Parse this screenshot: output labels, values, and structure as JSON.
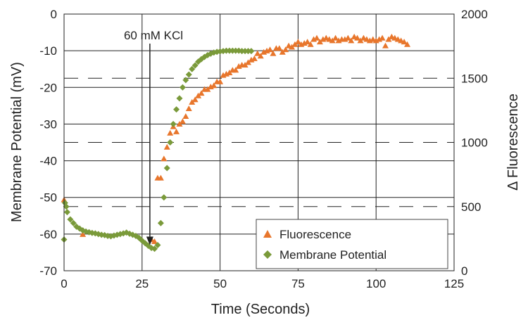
{
  "chart_data": {
    "type": "scatter",
    "title": "",
    "xlabel": "Time (Seconds)",
    "ylabel_left": "Membrane Potential (mV)",
    "ylabel_right": "Δ Fluorescence",
    "xlim": [
      0,
      125
    ],
    "ylim_left": [
      -70,
      0
    ],
    "ylim_right": [
      0,
      2000
    ],
    "x_ticks": [
      "0",
      "25",
      "50",
      "75",
      "100",
      "125"
    ],
    "y_left_ticks": [
      "0",
      "-10",
      "-20",
      "-30",
      "-40",
      "-50",
      "-60",
      "-70"
    ],
    "y_right_ticks": [
      "2000",
      "1500",
      "1000",
      "500",
      "0"
    ],
    "grid": "solid gridlines on left axis ticks; dashed lines at right axis ticks 500, 1000, 1500",
    "legend_position": "bottom-right",
    "annotation": {
      "text": "60 mM KCl",
      "x": 27.5,
      "y_left": -63
    },
    "series": [
      {
        "name": "Fluorescence",
        "axis": "right",
        "marker": "triangle",
        "color": "#E8762C",
        "points": [
          [
            0,
            550
          ],
          [
            6,
            280
          ],
          [
            28,
            240
          ],
          [
            29,
            225
          ],
          [
            30,
            720
          ],
          [
            31,
            720
          ],
          [
            32,
            870
          ],
          [
            33,
            960
          ],
          [
            34,
            1070
          ],
          [
            35,
            1120
          ],
          [
            36,
            1080
          ],
          [
            37,
            1140
          ],
          [
            38,
            1160
          ],
          [
            39,
            1200
          ],
          [
            40,
            1260
          ],
          [
            41,
            1310
          ],
          [
            42,
            1330
          ],
          [
            43,
            1360
          ],
          [
            44,
            1380
          ],
          [
            45,
            1410
          ],
          [
            46,
            1410
          ],
          [
            47,
            1430
          ],
          [
            48,
            1440
          ],
          [
            49,
            1470
          ],
          [
            50,
            1470
          ],
          [
            51,
            1520
          ],
          [
            52,
            1530
          ],
          [
            53,
            1540
          ],
          [
            54,
            1560
          ],
          [
            55,
            1560
          ],
          [
            56,
            1590
          ],
          [
            57,
            1600
          ],
          [
            58,
            1600
          ],
          [
            59,
            1620
          ],
          [
            60,
            1640
          ],
          [
            61,
            1650
          ],
          [
            62,
            1690
          ],
          [
            63,
            1670
          ],
          [
            64,
            1700
          ],
          [
            65,
            1710
          ],
          [
            66,
            1720
          ],
          [
            67,
            1690
          ],
          [
            68,
            1730
          ],
          [
            69,
            1730
          ],
          [
            70,
            1700
          ],
          [
            71,
            1720
          ],
          [
            72,
            1750
          ],
          [
            73,
            1740
          ],
          [
            74,
            1760
          ],
          [
            75,
            1780
          ],
          [
            76,
            1760
          ],
          [
            77,
            1770
          ],
          [
            78,
            1780
          ],
          [
            79,
            1760
          ],
          [
            80,
            1800
          ],
          [
            81,
            1810
          ],
          [
            82,
            1780
          ],
          [
            83,
            1800
          ],
          [
            84,
            1810
          ],
          [
            85,
            1800
          ],
          [
            86,
            1790
          ],
          [
            87,
            1810
          ],
          [
            88,
            1790
          ],
          [
            89,
            1800
          ],
          [
            90,
            1800
          ],
          [
            91,
            1810
          ],
          [
            92,
            1790
          ],
          [
            93,
            1820
          ],
          [
            94,
            1810
          ],
          [
            95,
            1790
          ],
          [
            96,
            1810
          ],
          [
            97,
            1800
          ],
          [
            98,
            1790
          ],
          [
            99,
            1800
          ],
          [
            100,
            1790
          ],
          [
            101,
            1800
          ],
          [
            102,
            1810
          ],
          [
            103,
            1750
          ],
          [
            104,
            1800
          ],
          [
            105,
            1820
          ],
          [
            106,
            1810
          ],
          [
            107,
            1800
          ],
          [
            108,
            1790
          ],
          [
            109,
            1780
          ],
          [
            110,
            1760
          ]
        ]
      },
      {
        "name": "Membrane Potential",
        "axis": "left",
        "marker": "diamond",
        "color": "#7A9A3A",
        "points": [
          [
            0,
            -61.5
          ],
          [
            0.3,
            -51.5
          ],
          [
            0.7,
            -52.5
          ],
          [
            1,
            -54
          ],
          [
            2,
            -56
          ],
          [
            3,
            -57
          ],
          [
            4,
            -58
          ],
          [
            5,
            -58.5
          ],
          [
            6,
            -59
          ],
          [
            7,
            -59.3
          ],
          [
            8,
            -59.5
          ],
          [
            9,
            -59.7
          ],
          [
            10,
            -59.8
          ],
          [
            11,
            -60
          ],
          [
            12,
            -60.2
          ],
          [
            13,
            -60.3
          ],
          [
            14,
            -60.5
          ],
          [
            15,
            -60.6
          ],
          [
            16,
            -60.4
          ],
          [
            17,
            -60.2
          ],
          [
            18,
            -60
          ],
          [
            19,
            -59.8
          ],
          [
            20,
            -59.6
          ],
          [
            21,
            -59.9
          ],
          [
            22,
            -60.2
          ],
          [
            23,
            -60.5
          ],
          [
            24,
            -61
          ],
          [
            25,
            -61.8
          ],
          [
            26,
            -62.5
          ],
          [
            27,
            -63.2
          ],
          [
            28,
            -63.8
          ],
          [
            29,
            -64
          ],
          [
            30,
            -63
          ],
          [
            31,
            -57
          ],
          [
            32,
            -50
          ],
          [
            33,
            -42
          ],
          [
            34,
            -35
          ],
          [
            35,
            -30
          ],
          [
            36,
            -26
          ],
          [
            37,
            -23
          ],
          [
            38,
            -20
          ],
          [
            39,
            -18
          ],
          [
            40,
            -16.5
          ],
          [
            41,
            -15
          ],
          [
            42,
            -14
          ],
          [
            43,
            -13
          ],
          [
            44,
            -12.3
          ],
          [
            45,
            -11.7
          ],
          [
            46,
            -11.2
          ],
          [
            47,
            -10.8
          ],
          [
            48,
            -10.5
          ],
          [
            49,
            -10.3
          ],
          [
            50,
            -10.2
          ],
          [
            51,
            -10.1
          ],
          [
            52,
            -10
          ],
          [
            53,
            -10
          ],
          [
            54,
            -10
          ],
          [
            55,
            -10
          ],
          [
            56,
            -10
          ],
          [
            57,
            -10.1
          ],
          [
            58,
            -10.1
          ],
          [
            59,
            -10.1
          ],
          [
            60,
            -10.1
          ]
        ]
      }
    ]
  }
}
